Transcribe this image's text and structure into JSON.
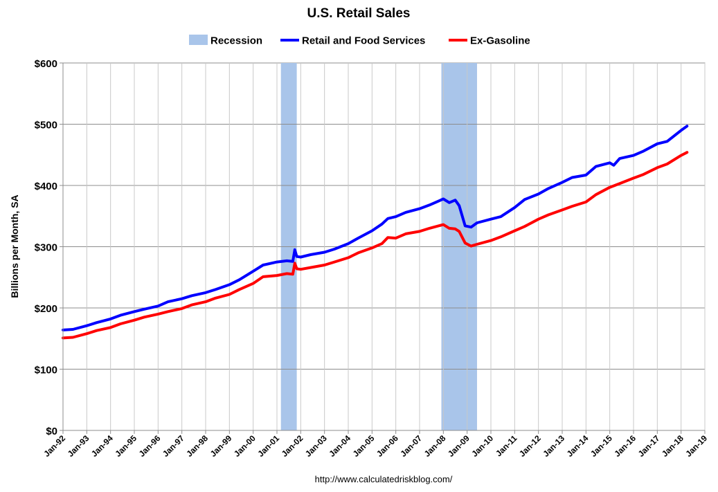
{
  "chart_data": {
    "type": "line",
    "title": "U.S. Retail Sales",
    "ylabel": "Billions per Month, SA",
    "xlabel": "",
    "ylim": [
      0,
      600
    ],
    "xlim": [
      "1992-01",
      "2019-01"
    ],
    "y_ticks": [
      0,
      100,
      200,
      300,
      400,
      500,
      600
    ],
    "y_tick_labels": [
      "$0",
      "$100",
      "$200",
      "$300",
      "$400",
      "$500",
      "$600"
    ],
    "x_tick_labels": [
      "Jan-92",
      "Jan-93",
      "Jan-94",
      "Jan-95",
      "Jan-96",
      "Jan-97",
      "Jan-98",
      "Jan-99",
      "Jan-00",
      "Jan-01",
      "Jan-02",
      "Jan-03",
      "Jan-04",
      "Jan-05",
      "Jan-06",
      "Jan-07",
      "Jan-08",
      "Jan-09",
      "Jan-10",
      "Jan-11",
      "Jan-12",
      "Jan-13",
      "Jan-14",
      "Jan-15",
      "Jan-16",
      "Jan-17",
      "Jan-18",
      "Jan-19"
    ],
    "grid": true,
    "legend_position": "top-center",
    "source_note": "http://www.calculatedriskblog.com/",
    "recessions": [
      {
        "name": "Recession",
        "start": "2001-03",
        "end": "2001-11",
        "color": "#a9c5ea"
      },
      {
        "name": "Recession",
        "start": "2007-12",
        "end": "2009-06",
        "color": "#a9c5ea"
      }
    ],
    "legend": [
      {
        "label": "Recession",
        "kind": "band",
        "color": "#a9c5ea"
      },
      {
        "label": "Retail and Food Services",
        "kind": "line",
        "color": "#0000ff"
      },
      {
        "label": "Ex-Gasoline",
        "kind": "line",
        "color": "#ff0000"
      }
    ],
    "series": [
      {
        "name": "Retail and Food Services",
        "color": "#0000ff",
        "points": [
          [
            "1992-01",
            164
          ],
          [
            "1992-06",
            165
          ],
          [
            "1993-01",
            171
          ],
          [
            "1993-06",
            176
          ],
          [
            "1994-01",
            182
          ],
          [
            "1994-06",
            188
          ],
          [
            "1995-01",
            194
          ],
          [
            "1995-06",
            198
          ],
          [
            "1996-01",
            203
          ],
          [
            "1996-06",
            210
          ],
          [
            "1997-01",
            215
          ],
          [
            "1997-06",
            220
          ],
          [
            "1998-01",
            225
          ],
          [
            "1998-06",
            230
          ],
          [
            "1999-01",
            238
          ],
          [
            "1999-06",
            246
          ],
          [
            "2000-01",
            260
          ],
          [
            "2000-06",
            270
          ],
          [
            "2001-01",
            275
          ],
          [
            "2001-06",
            277
          ],
          [
            "2001-09",
            276
          ],
          [
            "2001-10",
            295
          ],
          [
            "2001-11",
            284
          ],
          [
            "2002-01",
            283
          ],
          [
            "2002-06",
            287
          ],
          [
            "2003-01",
            291
          ],
          [
            "2003-06",
            296
          ],
          [
            "2004-01",
            305
          ],
          [
            "2004-06",
            314
          ],
          [
            "2005-01",
            326
          ],
          [
            "2005-06",
            337
          ],
          [
            "2005-09",
            346
          ],
          [
            "2006-01",
            349
          ],
          [
            "2006-06",
            356
          ],
          [
            "2007-01",
            362
          ],
          [
            "2007-06",
            368
          ],
          [
            "2008-01",
            378
          ],
          [
            "2008-04",
            372
          ],
          [
            "2008-07",
            376
          ],
          [
            "2008-09",
            367
          ],
          [
            "2008-12",
            334
          ],
          [
            "2009-03",
            332
          ],
          [
            "2009-06",
            339
          ],
          [
            "2010-01",
            345
          ],
          [
            "2010-06",
            349
          ],
          [
            "2011-01",
            364
          ],
          [
            "2011-06",
            377
          ],
          [
            "2012-01",
            386
          ],
          [
            "2012-06",
            395
          ],
          [
            "2013-01",
            405
          ],
          [
            "2013-06",
            413
          ],
          [
            "2014-01",
            417
          ],
          [
            "2014-06",
            431
          ],
          [
            "2015-01",
            437
          ],
          [
            "2015-03",
            433
          ],
          [
            "2015-06",
            444
          ],
          [
            "2016-01",
            449
          ],
          [
            "2016-06",
            456
          ],
          [
            "2017-01",
            468
          ],
          [
            "2017-06",
            472
          ],
          [
            "2018-01",
            490
          ],
          [
            "2018-04",
            497
          ]
        ]
      },
      {
        "name": "Ex-Gasoline",
        "color": "#ff0000",
        "points": [
          [
            "1992-01",
            151
          ],
          [
            "1992-06",
            152
          ],
          [
            "1993-01",
            158
          ],
          [
            "1993-06",
            163
          ],
          [
            "1994-01",
            168
          ],
          [
            "1994-06",
            174
          ],
          [
            "1995-01",
            180
          ],
          [
            "1995-06",
            185
          ],
          [
            "1996-01",
            190
          ],
          [
            "1996-06",
            194
          ],
          [
            "1997-01",
            199
          ],
          [
            "1997-06",
            205
          ],
          [
            "1998-01",
            210
          ],
          [
            "1998-06",
            216
          ],
          [
            "1999-01",
            222
          ],
          [
            "1999-06",
            230
          ],
          [
            "2000-01",
            240
          ],
          [
            "2000-06",
            251
          ],
          [
            "2001-01",
            253
          ],
          [
            "2001-06",
            256
          ],
          [
            "2001-09",
            255
          ],
          [
            "2001-10",
            273
          ],
          [
            "2001-11",
            264
          ],
          [
            "2002-01",
            263
          ],
          [
            "2002-06",
            266
          ],
          [
            "2003-01",
            270
          ],
          [
            "2003-06",
            275
          ],
          [
            "2004-01",
            282
          ],
          [
            "2004-06",
            290
          ],
          [
            "2005-01",
            298
          ],
          [
            "2005-06",
            305
          ],
          [
            "2005-09",
            315
          ],
          [
            "2006-01",
            314
          ],
          [
            "2006-06",
            321
          ],
          [
            "2007-01",
            325
          ],
          [
            "2007-06",
            330
          ],
          [
            "2008-01",
            336
          ],
          [
            "2008-04",
            330
          ],
          [
            "2008-07",
            329
          ],
          [
            "2008-09",
            325
          ],
          [
            "2008-12",
            306
          ],
          [
            "2009-03",
            301
          ],
          [
            "2009-06",
            304
          ],
          [
            "2010-01",
            310
          ],
          [
            "2010-06",
            316
          ],
          [
            "2011-01",
            326
          ],
          [
            "2011-06",
            333
          ],
          [
            "2012-01",
            345
          ],
          [
            "2012-06",
            352
          ],
          [
            "2013-01",
            360
          ],
          [
            "2013-06",
            366
          ],
          [
            "2014-01",
            373
          ],
          [
            "2014-06",
            385
          ],
          [
            "2015-01",
            397
          ],
          [
            "2015-06",
            403
          ],
          [
            "2016-01",
            412
          ],
          [
            "2016-06",
            418
          ],
          [
            "2017-01",
            429
          ],
          [
            "2017-06",
            435
          ],
          [
            "2018-01",
            449
          ],
          [
            "2018-04",
            454
          ]
        ]
      }
    ]
  }
}
